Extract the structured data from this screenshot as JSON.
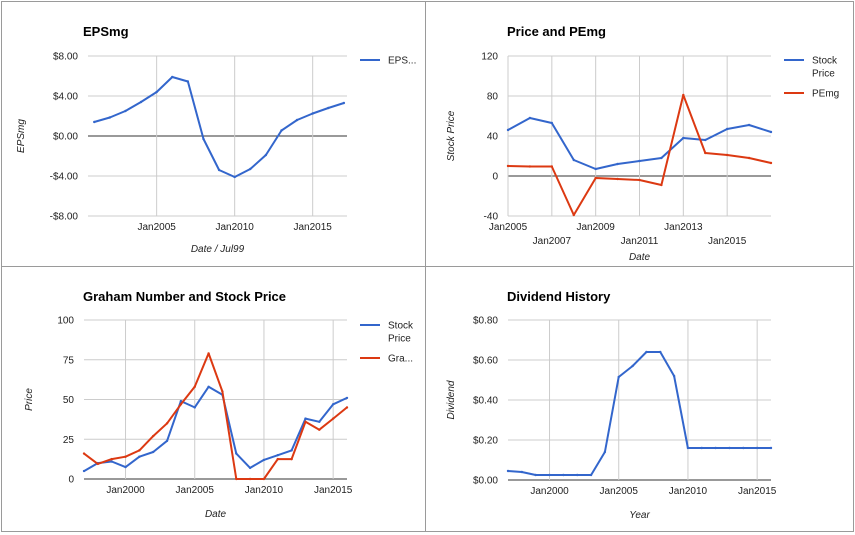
{
  "chart_data": [
    {
      "type": "line",
      "title": "EPSmg",
      "xlabel": "Date / Jul99",
      "ylabel": "EPSmg",
      "x": [
        2001,
        2002,
        2003,
        2004,
        2005,
        2006,
        2007,
        2008,
        2009,
        2010,
        2011,
        2012,
        2013,
        2014,
        2015,
        2016,
        2017
      ],
      "series": [
        {
          "name": "EPS...",
          "color": "#3366cc",
          "values": [
            1.4,
            1.85,
            2.5,
            3.4,
            4.4,
            5.9,
            5.45,
            -0.3,
            -3.4,
            -4.1,
            -3.3,
            -1.9,
            0.55,
            1.6,
            2.25,
            2.8,
            3.3
          ]
        }
      ],
      "ylim": [
        -8,
        8
      ],
      "xlim": [
        2000.6,
        2017.2
      ],
      "yticks": [
        8,
        4,
        0,
        -4,
        -8
      ],
      "ytick_labels": [
        "$8.00",
        "$4.00",
        "$0.00",
        "-$4.00",
        "-$8.00"
      ],
      "xticks": [
        2005,
        2010,
        2015
      ],
      "xtick_labels": [
        "Jan2005",
        "Jan2010",
        "Jan2015"
      ],
      "grid": true,
      "legend_position": "right"
    },
    {
      "type": "line",
      "title": "Price and PEmg",
      "xlabel": "Date",
      "ylabel": "Stock Price",
      "x": [
        2005,
        2006,
        2007,
        2008,
        2009,
        2010,
        2011,
        2012,
        2013,
        2014,
        2015,
        2016,
        2017
      ],
      "series": [
        {
          "name": "Stock Price",
          "color": "#3366cc",
          "values": [
            46,
            58,
            53,
            16,
            7,
            12,
            15,
            18,
            38,
            36,
            47,
            51,
            44
          ]
        },
        {
          "name": "PEmg",
          "color": "#dc3912",
          "values": [
            10,
            9.5,
            9.5,
            -39,
            -2,
            -3,
            -4,
            -9,
            81,
            23,
            21,
            18,
            13
          ]
        }
      ],
      "ylim": [
        -40,
        120
      ],
      "xlim": [
        2005,
        2017
      ],
      "yticks": [
        120,
        80,
        40,
        0,
        -40
      ],
      "ytick_labels": [
        "120",
        "80",
        "40",
        "0",
        "-40"
      ],
      "xticks": [
        2005,
        2007,
        2009,
        2011,
        2013,
        2015
      ],
      "xtick_labels": [
        "Jan2005",
        "Jan2007",
        "Jan2009",
        "Jan2011",
        "Jan2013",
        "Jan2015"
      ],
      "grid": true,
      "legend_position": "right"
    },
    {
      "type": "line",
      "title": "Graham Number and Stock Price",
      "xlabel": "Date",
      "ylabel": "Price",
      "x": [
        1997,
        1998,
        1999,
        2000,
        2001,
        2002,
        2003,
        2004,
        2005,
        2006,
        2007,
        2008,
        2009,
        2010,
        2011,
        2012,
        2013,
        2014,
        2015,
        2016
      ],
      "series": [
        {
          "name": "Stock Price",
          "color": "#3366cc",
          "values": [
            5,
            10,
            11,
            7.5,
            14,
            17,
            24,
            49,
            45,
            58,
            53,
            16,
            7,
            12,
            15,
            18,
            38,
            36,
            47,
            51
          ]
        },
        {
          "name": "Gra...",
          "color": "#dc3912",
          "values": [
            16,
            9.5,
            12.5,
            14,
            18,
            27,
            35,
            47,
            58,
            79,
            55,
            0,
            0,
            0,
            12.5,
            12.5,
            36,
            31,
            38,
            45
          ]
        }
      ],
      "ylim": [
        0,
        100
      ],
      "xlim": [
        1997,
        2016
      ],
      "yticks": [
        100,
        75,
        50,
        25,
        0
      ],
      "ytick_labels": [
        "100",
        "75",
        "50",
        "25",
        "0"
      ],
      "xticks": [
        2000,
        2005,
        2010,
        2015
      ],
      "xtick_labels": [
        "Jan2000",
        "Jan2005",
        "Jan2010",
        "Jan2015"
      ],
      "grid": true,
      "legend_position": "right"
    },
    {
      "type": "line",
      "title": "Dividend History",
      "xlabel": "Year",
      "ylabel": "Dividend",
      "x": [
        1997,
        1998,
        1999,
        2000,
        2001,
        2002,
        2003,
        2004,
        2005,
        2006,
        2007,
        2008,
        2009,
        2010,
        2011,
        2012,
        2013,
        2014,
        2015,
        2016
      ],
      "series": [
        {
          "name": "Dividend",
          "color": "#3366cc",
          "values": [
            0.045,
            0.04,
            0.025,
            0.025,
            0.025,
            0.025,
            0.025,
            0.14,
            0.515,
            0.57,
            0.64,
            0.64,
            0.52,
            0.16,
            0.16,
            0.16,
            0.16,
            0.16,
            0.16,
            0.16
          ]
        }
      ],
      "ylim": [
        0,
        0.8
      ],
      "xlim": [
        1997,
        2016
      ],
      "yticks": [
        0.8,
        0.6,
        0.4,
        0.2,
        0
      ],
      "ytick_labels": [
        "$0.80",
        "$0.60",
        "$0.40",
        "$0.20",
        "$0.00"
      ],
      "xticks": [
        2000,
        2005,
        2010,
        2015
      ],
      "xtick_labels": [
        "Jan2000",
        "Jan2005",
        "Jan2010",
        "Jan2015"
      ],
      "grid": true,
      "legend_position": "none"
    }
  ],
  "colors": {
    "grid": "#cccccc",
    "baseline": "#333333"
  }
}
